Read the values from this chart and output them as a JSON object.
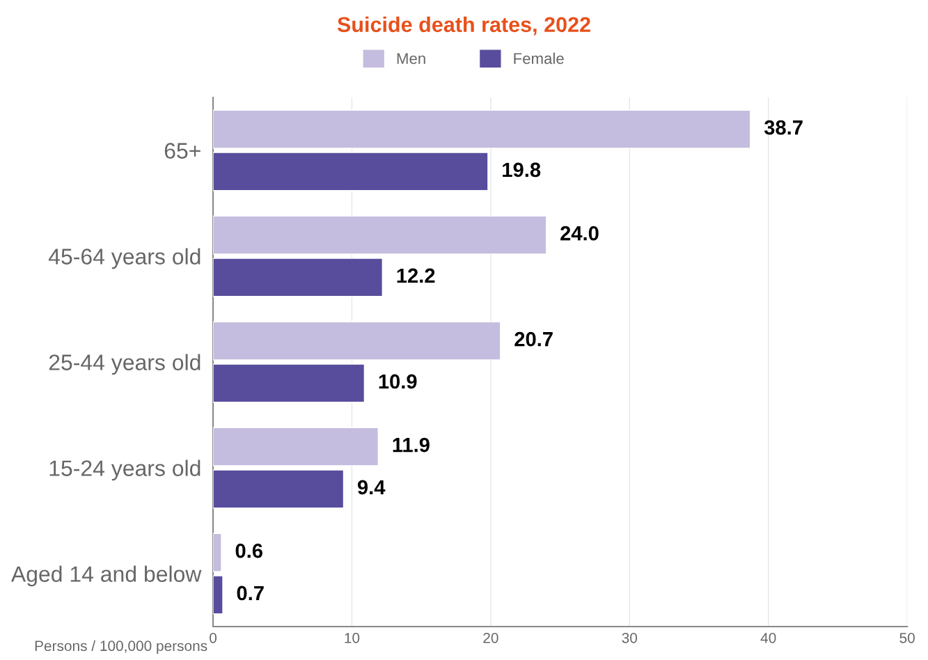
{
  "chart_data": {
    "type": "bar",
    "orientation": "horizontal",
    "title": "Suicide death rates, 2022",
    "xlabel": "Persons / 100,000 persons",
    "categories": [
      "65+",
      "45-64 years old",
      "25-44 years old",
      "15-24 years old",
      "Aged 14 and below"
    ],
    "series": [
      {
        "name": "Men",
        "color": "#c5bddf",
        "values": [
          38.7,
          24.0,
          20.7,
          11.9,
          0.6
        ]
      },
      {
        "name": "Female",
        "color": "#574d9c",
        "values": [
          19.8,
          12.2,
          10.9,
          9.4,
          0.7
        ]
      }
    ],
    "value_labels": [
      [
        "38.7",
        "24.0",
        "20.7",
        "11.9",
        "0.6"
      ],
      [
        "19.8",
        "12.2",
        "10.9",
        "9.4",
        "0.7"
      ]
    ],
    "xlim": [
      0,
      50
    ],
    "xticks": [
      0,
      10,
      20,
      30,
      40,
      50
    ],
    "grid": "x",
    "legend": "top"
  }
}
